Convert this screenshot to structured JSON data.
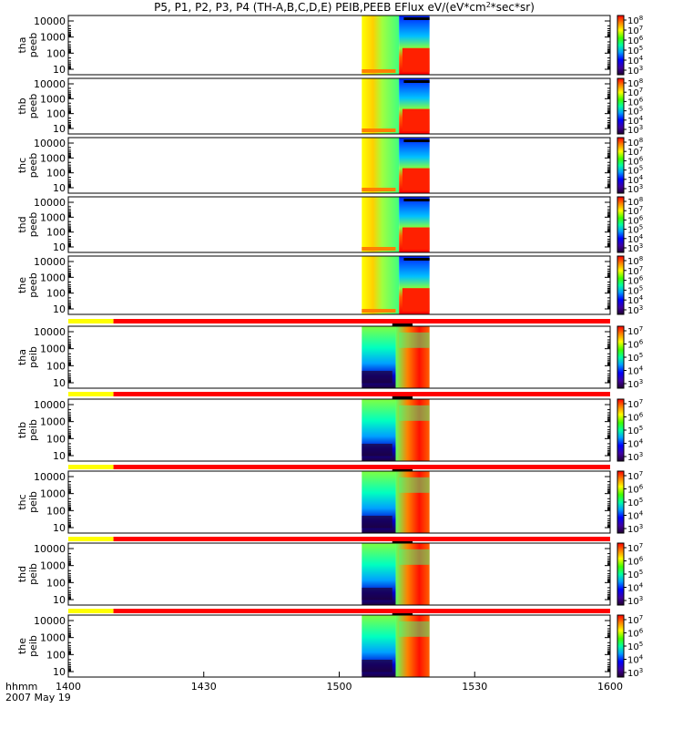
{
  "chart_data": {
    "type": "heatmap",
    "title": "P5, P1, P2, P3, P4 (TH-A,B,C,D,E) PEIB,PEEB EFlux eV/(eV*cm",
    "title_sup": "2",
    "title_suffix": "*sec*sr)",
    "x": {
      "tick_labels": [
        "1400",
        "1430",
        "1500",
        "1530",
        "1600"
      ],
      "range": [
        "14:00",
        "16:00"
      ],
      "label": "hhmm",
      "date": "2007 May 19"
    },
    "y": {
      "scale": "log",
      "tick_labels": [
        "10000",
        "1000",
        "100",
        "10"
      ]
    },
    "data_window": {
      "start": "15:05",
      "end": "15:20"
    },
    "panels": [
      {
        "probe": "tha",
        "product": "peeb",
        "colorbar": [
          "8",
          "7",
          "6",
          "5",
          "4",
          "3"
        ]
      },
      {
        "probe": "thb",
        "product": "peeb",
        "colorbar": [
          "8",
          "7",
          "6",
          "5",
          "4",
          "3"
        ]
      },
      {
        "probe": "thc",
        "product": "peeb",
        "colorbar": [
          "8",
          "7",
          "6",
          "5",
          "4",
          "3"
        ]
      },
      {
        "probe": "thd",
        "product": "peeb",
        "colorbar": [
          "8",
          "7",
          "6",
          "5",
          "4",
          "3"
        ]
      },
      {
        "probe": "the",
        "product": "peeb",
        "colorbar": [
          "8",
          "7",
          "6",
          "5",
          "4",
          "3"
        ]
      },
      {
        "probe": "tha",
        "product": "peib",
        "colorbar": [
          "7",
          "6",
          "5",
          "4",
          "3"
        ]
      },
      {
        "probe": "thb",
        "product": "peib",
        "colorbar": [
          "7",
          "6",
          "5",
          "4",
          "3"
        ]
      },
      {
        "probe": "thc",
        "product": "peib",
        "colorbar": [
          "7",
          "6",
          "5",
          "4",
          "3"
        ]
      },
      {
        "probe": "thd",
        "product": "peib",
        "colorbar": [
          "7",
          "6",
          "5",
          "4",
          "3"
        ]
      },
      {
        "probe": "the",
        "product": "peib",
        "colorbar": [
          "7",
          "6",
          "5",
          "4",
          "3"
        ]
      }
    ],
    "colorbar_base": "10",
    "mode_bars": {
      "yellow_end": "14:10",
      "red_end": "16:00"
    }
  }
}
